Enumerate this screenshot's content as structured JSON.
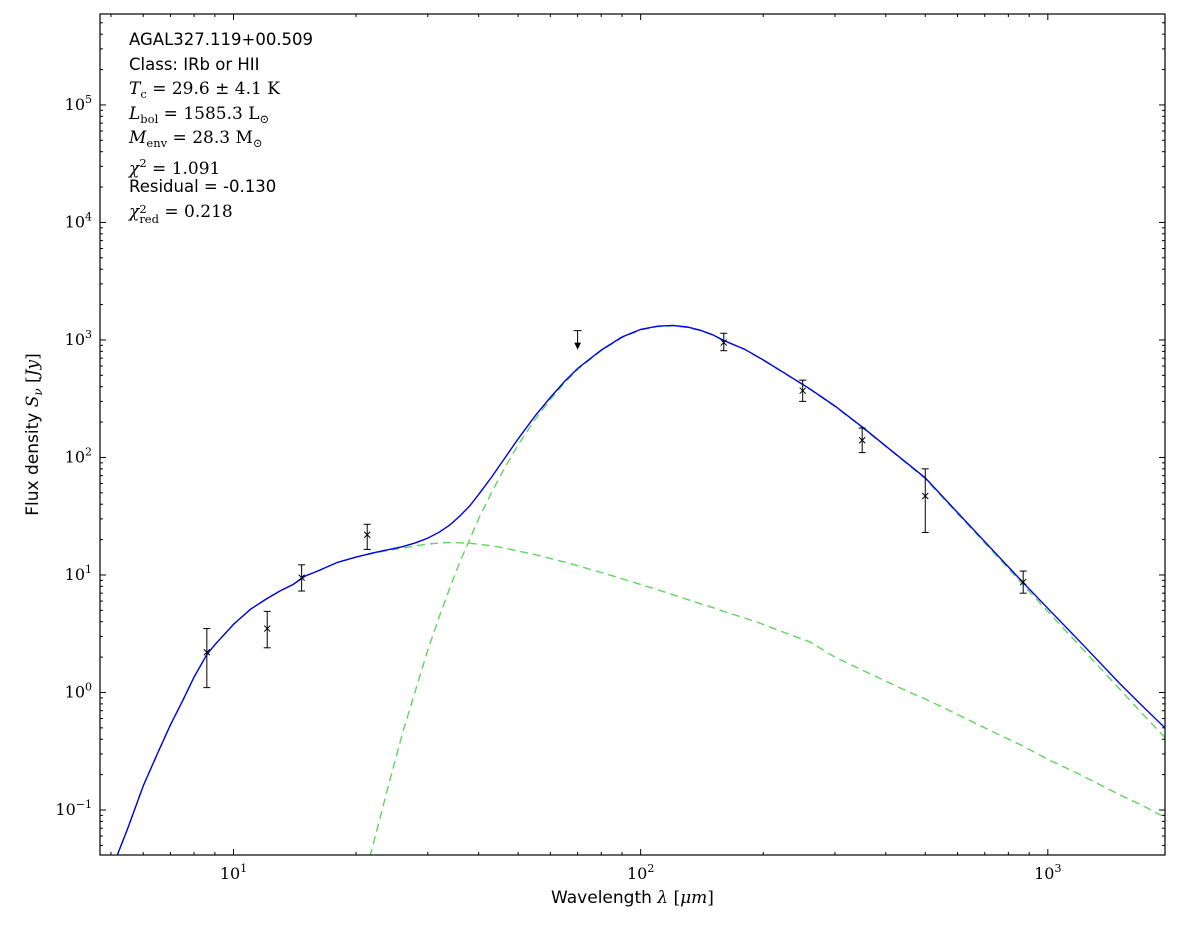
{
  "figure": {
    "background": "#ffffff"
  },
  "annotation": {
    "lines": [
      {
        "type": "plain",
        "text": "AGAL327.119+00.509"
      },
      {
        "type": "plain",
        "text": "Class: IRb or HII"
      },
      {
        "type": "math",
        "segments": [
          {
            "t": "T",
            "s": "it"
          },
          {
            "t": "c",
            "s": "sub"
          },
          {
            "t": " = 29.6 ± 4.1 ",
            "s": "rm"
          },
          {
            "t": "K",
            "s": "rm"
          }
        ]
      },
      {
        "type": "math",
        "segments": [
          {
            "t": "L",
            "s": "it"
          },
          {
            "t": "bol",
            "s": "sub"
          },
          {
            "t": " = 1585.3 ",
            "s": "rm"
          },
          {
            "t": "L",
            "s": "rm"
          },
          {
            "t": "⊙",
            "s": "sub"
          }
        ]
      },
      {
        "type": "math",
        "segments": [
          {
            "t": "M",
            "s": "it"
          },
          {
            "t": "env",
            "s": "sub"
          },
          {
            "t": " = 28.3 ",
            "s": "rm"
          },
          {
            "t": "M",
            "s": "rm"
          },
          {
            "t": "⊙",
            "s": "sub"
          }
        ]
      },
      {
        "type": "math",
        "segments": [
          {
            "t": "χ",
            "s": "it"
          },
          {
            "t": "2",
            "s": "sup"
          },
          {
            "t": " = 1.091",
            "s": "rm"
          }
        ]
      },
      {
        "type": "plain",
        "text": "Residual = -0.130"
      },
      {
        "type": "math",
        "segments": [
          {
            "t": "χ",
            "s": "it"
          },
          {
            "s": "stack",
            "sup": "2",
            "sub": "red"
          },
          {
            "t": " = 0.218",
            "s": "rm"
          }
        ]
      }
    ]
  },
  "chart_data": {
    "type": "line",
    "title": "",
    "grid": false,
    "legend": null,
    "xlabel_plain": "Wavelength λ [μm]",
    "ylabel_plain": "Flux density S_ν [Jy]",
    "xlabel_segments": [
      {
        "t": "Wavelength ",
        "s": "sans"
      },
      {
        "t": "λ",
        "s": "it"
      },
      {
        "t": " [",
        "s": "rm"
      },
      {
        "t": "μm",
        "s": "it"
      },
      {
        "t": "]",
        "s": "rm"
      }
    ],
    "ylabel_segments": [
      {
        "t": "Flux density ",
        "s": "sans"
      },
      {
        "t": "S",
        "s": "it"
      },
      {
        "t": "ν",
        "s": "subit"
      },
      {
        "t": " [",
        "s": "rm"
      },
      {
        "t": "Jy",
        "s": "it"
      },
      {
        "t": "]",
        "s": "rm"
      }
    ],
    "x_axis": {
      "scale": "log",
      "min": 4.7,
      "max": 1940,
      "tick_label_exponents": [
        1,
        2,
        3
      ]
    },
    "y_axis": {
      "scale": "log",
      "min": 0.0414,
      "max": 594000,
      "tick_label_exponents": [
        -1,
        0,
        1,
        2,
        3,
        4,
        5
      ]
    },
    "series": [
      {
        "name": "cold-component",
        "label": "cold dust component (dashed)",
        "color": "#5fd65f",
        "style": "dashed",
        "points": [
          [
            20,
            0.015
          ],
          [
            22,
            0.05
          ],
          [
            24,
            0.16
          ],
          [
            26,
            0.45
          ],
          [
            28,
            1.05
          ],
          [
            30,
            2.3
          ],
          [
            32,
            4.4
          ],
          [
            34,
            7.8
          ],
          [
            36,
            13
          ],
          [
            38,
            20
          ],
          [
            40,
            30
          ],
          [
            43,
            50
          ],
          [
            46,
            78
          ],
          [
            50,
            128
          ],
          [
            55,
            210
          ],
          [
            60,
            310
          ],
          [
            65,
            430
          ],
          [
            70,
            560
          ],
          [
            80,
            810
          ],
          [
            90,
            1050
          ],
          [
            100,
            1220
          ],
          [
            110,
            1300
          ],
          [
            120,
            1320
          ],
          [
            130,
            1280
          ],
          [
            140,
            1200
          ],
          [
            150,
            1100
          ],
          [
            160,
            985
          ],
          [
            180,
            830
          ],
          [
            200,
            672
          ],
          [
            230,
            498
          ],
          [
            260,
            382
          ],
          [
            300,
            272
          ],
          [
            350,
            180
          ],
          [
            400,
            124
          ],
          [
            450,
            89
          ],
          [
            500,
            66
          ],
          [
            600,
            33.3
          ],
          [
            700,
            18.7
          ],
          [
            870,
            8.25
          ],
          [
            1000,
            4.9
          ],
          [
            1200,
            2.47
          ],
          [
            1500,
            1.07
          ],
          [
            1700,
            0.67
          ],
          [
            2000,
            0.37
          ]
        ]
      },
      {
        "name": "warm-component",
        "label": "warm dust component (dashed)",
        "color": "#5fd65f",
        "style": "dashed",
        "points": [
          [
            5,
            0.03
          ],
          [
            5.5,
            0.07
          ],
          [
            6,
            0.16
          ],
          [
            6.5,
            0.3
          ],
          [
            7,
            0.53
          ],
          [
            7.5,
            0.85
          ],
          [
            8,
            1.35
          ],
          [
            8.6,
            2.1
          ],
          [
            9,
            2.55
          ],
          [
            10,
            3.8
          ],
          [
            11,
            5.1
          ],
          [
            12,
            6.2
          ],
          [
            13,
            7.3
          ],
          [
            14,
            8.3
          ],
          [
            15,
            9.8
          ],
          [
            16,
            10.7
          ],
          [
            18,
            12.8
          ],
          [
            20,
            14.2
          ],
          [
            22,
            15.3
          ],
          [
            24,
            16.2
          ],
          [
            26,
            16.9
          ],
          [
            28,
            17.7
          ],
          [
            30,
            18.3
          ],
          [
            32,
            18.7
          ],
          [
            34,
            18.9
          ],
          [
            36,
            18.8
          ],
          [
            38,
            18.6
          ],
          [
            40,
            18.3
          ],
          [
            43,
            17.7
          ],
          [
            46,
            17
          ],
          [
            50,
            16
          ],
          [
            55,
            14.9
          ],
          [
            60,
            13.8
          ],
          [
            65,
            12.9
          ],
          [
            70,
            12
          ],
          [
            80,
            10.5
          ],
          [
            90,
            9.3
          ],
          [
            100,
            8.3
          ],
          [
            110,
            7.5
          ],
          [
            120,
            6.8
          ],
          [
            130,
            6.2
          ],
          [
            140,
            5.7
          ],
          [
            150,
            5.3
          ],
          [
            160,
            4.9
          ],
          [
            180,
            4.3
          ],
          [
            200,
            3.8
          ],
          [
            230,
            3.15
          ],
          [
            260,
            2.7
          ],
          [
            300,
            2
          ],
          [
            350,
            1.55
          ],
          [
            400,
            1.25
          ],
          [
            450,
            1.03
          ],
          [
            500,
            0.88
          ],
          [
            600,
            0.65
          ],
          [
            700,
            0.5
          ],
          [
            870,
            0.35
          ],
          [
            1000,
            0.27
          ],
          [
            1200,
            0.2
          ],
          [
            1500,
            0.135
          ],
          [
            1700,
            0.11
          ],
          [
            2000,
            0.082
          ]
        ]
      },
      {
        "name": "total-model",
        "label": "total model fit (solid)",
        "color": "#0000e6",
        "style": "solid",
        "points": [
          [
            5,
            0.03
          ],
          [
            5.5,
            0.07
          ],
          [
            6,
            0.16
          ],
          [
            6.5,
            0.3
          ],
          [
            7,
            0.53
          ],
          [
            7.5,
            0.85
          ],
          [
            8,
            1.35
          ],
          [
            8.6,
            2.1
          ],
          [
            9,
            2.55
          ],
          [
            10,
            3.8
          ],
          [
            11,
            5.1
          ],
          [
            12,
            6.2
          ],
          [
            13,
            7.3
          ],
          [
            14,
            8.3
          ],
          [
            15,
            9.8
          ],
          [
            16,
            10.7
          ],
          [
            18,
            12.8
          ],
          [
            20,
            14.2
          ],
          [
            22,
            15.4
          ],
          [
            24,
            16.4
          ],
          [
            26,
            17.4
          ],
          [
            28,
            18.8
          ],
          [
            30,
            20.6
          ],
          [
            32,
            23.1
          ],
          [
            34,
            26.7
          ],
          [
            36,
            31.8
          ],
          [
            38,
            38.6
          ],
          [
            40,
            48.3
          ],
          [
            43,
            67.7
          ],
          [
            46,
            95
          ],
          [
            50,
            144
          ],
          [
            55,
            225
          ],
          [
            60,
            324
          ],
          [
            65,
            443
          ],
          [
            70,
            572
          ],
          [
            80,
            820
          ],
          [
            90,
            1060
          ],
          [
            100,
            1230
          ],
          [
            110,
            1310
          ],
          [
            120,
            1330
          ],
          [
            130,
            1290
          ],
          [
            140,
            1210
          ],
          [
            150,
            1110
          ],
          [
            160,
            990
          ],
          [
            180,
            834
          ],
          [
            200,
            676
          ],
          [
            230,
            501
          ],
          [
            260,
            385
          ],
          [
            300,
            274
          ],
          [
            350,
            182
          ],
          [
            400,
            125
          ],
          [
            450,
            90
          ],
          [
            500,
            67
          ],
          [
            600,
            34
          ],
          [
            700,
            19.2
          ],
          [
            870,
            8.6
          ],
          [
            1000,
            5.2
          ],
          [
            1200,
            2.7
          ],
          [
            1500,
            1.2
          ],
          [
            1700,
            0.78
          ],
          [
            2000,
            0.45
          ]
        ]
      }
    ],
    "data_points": [
      {
        "wavelength": 8.6,
        "flux": 2.2,
        "err_lo": 1.1,
        "err_hi": 3.5
      },
      {
        "wavelength": 12.1,
        "flux": 3.5,
        "err_lo": 2.4,
        "err_hi": 4.9
      },
      {
        "wavelength": 14.7,
        "flux": 9.5,
        "err_lo": 7.3,
        "err_hi": 12.2
      },
      {
        "wavelength": 21.3,
        "flux": 22,
        "err_lo": 16.5,
        "err_hi": 27
      },
      {
        "wavelength": 160,
        "flux": 950,
        "err_lo": 810,
        "err_hi": 1140
      },
      {
        "wavelength": 250,
        "flux": 370,
        "err_lo": 300,
        "err_hi": 455
      },
      {
        "wavelength": 350,
        "flux": 140,
        "err_lo": 110,
        "err_hi": 178
      },
      {
        "wavelength": 500,
        "flux": 47,
        "err_lo": 23,
        "err_hi": 80
      },
      {
        "wavelength": 870,
        "flux": 8.7,
        "err_lo": 7.0,
        "err_hi": 10.8
      }
    ],
    "upper_limits": [
      {
        "wavelength": 70,
        "flux": 1200
      }
    ],
    "colors": {
      "model_total": "#0000e6",
      "components": "#5fd65f",
      "data": "#000000",
      "frame": "#000000"
    }
  }
}
